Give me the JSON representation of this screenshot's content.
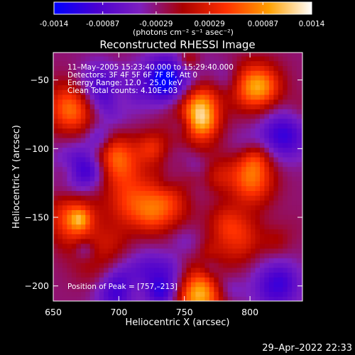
{
  "colorbar": {
    "tick_labels": [
      "-0.0014",
      "-0.00087",
      "-0.00029",
      "0.00029",
      "0.00087",
      "0.0014"
    ],
    "tick_values": [
      -0.0014,
      -0.00087,
      -0.00029,
      0.00029,
      0.00087,
      0.0014
    ],
    "unit_label": "(photons cm⁻² s⁻¹ asec⁻²)",
    "range": [
      -0.0014,
      0.0014
    ],
    "colors": [
      "#0000ff",
      "#4a00d0",
      "#7d1fbf",
      "#aa0000",
      "#ff3000",
      "#ffa000",
      "#ffffff"
    ]
  },
  "chart_data": {
    "type": "heatmap",
    "title": "Reconstructed RHESSI Image",
    "xlabel": "Heliocentric X (arcsec)",
    "ylabel": "Heliocentric Y (arcsec)",
    "xlim": [
      650,
      840
    ],
    "ylim": [
      -211,
      -30
    ],
    "x_ticks": [
      650,
      700,
      750,
      800
    ],
    "x_tick_labels": [
      "650",
      "700",
      "750",
      "800"
    ],
    "y_ticks": [
      -50,
      -100,
      -150,
      -200
    ],
    "y_tick_labels": [
      "−50",
      "−100",
      "−150",
      "−200"
    ],
    "annotations": [
      "11–May–2005 15:23:40.000 to 15:29:40.000",
      "Detectors: 3F 4F 5F 6F 7F 8F, Att 0",
      "Energy Range: 12.0 – 25.0 keV",
      "Clean     Total counts: 4.10E+03"
    ],
    "peak_label": "Position of Peak = [757,–213]",
    "peak": [
      757,
      -213
    ],
    "hot_spots": [
      {
        "x": 755,
        "y": -75,
        "value": 0.0013
      },
      {
        "x": 760,
        "y": -205,
        "value": 0.0014
      },
      {
        "x": 700,
        "y": -110,
        "value": 0.0009
      },
      {
        "x": 665,
        "y": -70,
        "value": 0.0011
      },
      {
        "x": 665,
        "y": -150,
        "value": 0.0009
      },
      {
        "x": 805,
        "y": -55,
        "value": 0.0009
      },
      {
        "x": 800,
        "y": -115,
        "value": 0.0008
      },
      {
        "x": 735,
        "y": -140,
        "value": 0.0008
      },
      {
        "x": 710,
        "y": -140,
        "value": 0.0007
      },
      {
        "x": 790,
        "y": -165,
        "value": 0.0007
      },
      {
        "x": 690,
        "y": -190,
        "value": 0.0006
      }
    ],
    "cold_spots": [
      {
        "x": 700,
        "y": -200,
        "value": -0.0012
      },
      {
        "x": 735,
        "y": -50,
        "value": -0.0009
      },
      {
        "x": 825,
        "y": -90,
        "value": -0.0008
      },
      {
        "x": 670,
        "y": -115,
        "value": -0.0008
      },
      {
        "x": 690,
        "y": -55,
        "value": -0.0006
      },
      {
        "x": 820,
        "y": -200,
        "value": -0.0007
      },
      {
        "x": 760,
        "y": -110,
        "value": -0.0006
      }
    ]
  },
  "timestamp": "29–Apr–2022 22:33"
}
